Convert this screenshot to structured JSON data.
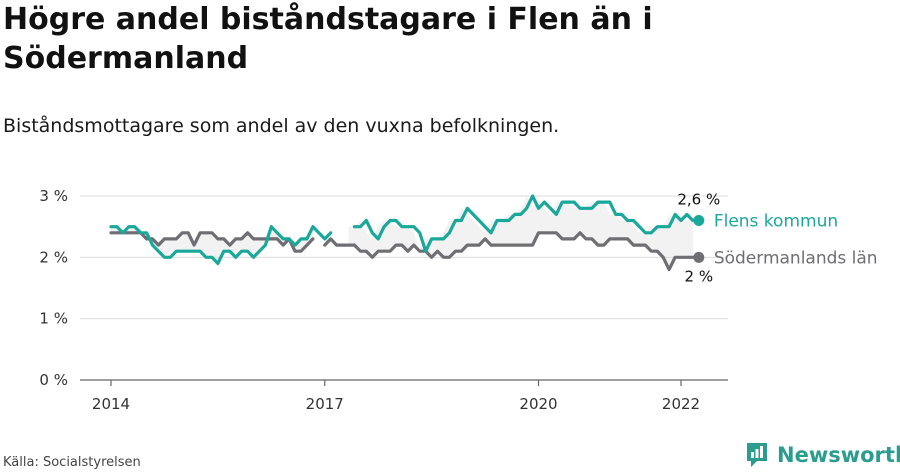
{
  "title": "Högre andel biståndstagare i Flen än i Södermanland",
  "subtitle": "Biståndsmottagare som andel av den vuxna befolkningen.",
  "source": "Källa: Socialstyrelsen",
  "brand": {
    "name": "Newsworthy",
    "icon": "newsworthy-logo-icon",
    "color": "#2a9d8f"
  },
  "chart_data": {
    "type": "line",
    "title": "Högre andel biståndstagare i Flen än i Södermanland",
    "subtitle": "Biståndsmottagare som andel av den vuxna befolkningen.",
    "xlabel": "",
    "ylabel": "",
    "xlim": [
      2014.0,
      2022.4
    ],
    "ylim": [
      0,
      3
    ],
    "y_ticks": [
      0,
      1,
      2,
      3
    ],
    "y_tick_labels": [
      "0 %",
      "1 %",
      "2 %",
      "3 %"
    ],
    "x_ticks": [
      2014,
      2017,
      2020,
      2022
    ],
    "x_tick_labels": [
      "2014",
      "2017",
      "2020",
      "2022"
    ],
    "grid": "horizontal",
    "legend": "inline at line ends",
    "series": [
      {
        "name": "Flens kommun",
        "color": "#1aa89a",
        "end_label": "2,6 %",
        "x": [
          2014.0,
          2014.083,
          2014.167,
          2014.25,
          2014.333,
          2014.417,
          2014.5,
          2014.583,
          2014.667,
          2014.75,
          2014.833,
          2014.917,
          2015.0,
          2015.083,
          2015.167,
          2015.25,
          2015.333,
          2015.417,
          2015.5,
          2015.583,
          2015.667,
          2015.75,
          2015.833,
          2015.917,
          2016.0,
          2016.083,
          2016.167,
          2016.25,
          2016.333,
          2016.417,
          2016.5,
          2016.583,
          2016.667,
          2016.75,
          2016.833,
          2016.917,
          2017.0,
          2017.083,
          2017.167,
          null,
          2017.417,
          2017.5,
          2017.583,
          2017.667,
          2017.75,
          2017.833,
          2017.917,
          2018.0,
          2018.083,
          2018.167,
          2018.25,
          2018.333,
          2018.417,
          2018.5,
          2018.583,
          2018.667,
          2018.75,
          2018.833,
          2018.917,
          2019.0,
          2019.083,
          2019.167,
          2019.25,
          2019.333,
          2019.417,
          2019.5,
          2019.583,
          2019.667,
          2019.75,
          2019.833,
          2019.917,
          2020.0,
          2020.083,
          2020.167,
          2020.25,
          2020.333,
          2020.417,
          2020.5,
          2020.583,
          2020.667,
          2020.75,
          2020.833,
          2020.917,
          2021.0,
          2021.083,
          2021.167,
          2021.25,
          2021.333,
          2021.417,
          2021.5,
          2021.583,
          2021.667,
          2021.75,
          2021.833,
          2021.917,
          2022.0,
          2022.083,
          2022.167,
          2022.25
        ],
        "y": [
          2.5,
          2.5,
          2.4,
          2.5,
          2.5,
          2.4,
          2.4,
          2.2,
          2.1,
          2.0,
          2.0,
          2.1,
          2.1,
          2.1,
          2.1,
          2.1,
          2.0,
          2.0,
          1.9,
          2.1,
          2.1,
          2.0,
          2.1,
          2.1,
          2.0,
          2.1,
          2.2,
          2.5,
          2.4,
          2.3,
          2.3,
          2.2,
          2.3,
          2.3,
          2.5,
          2.4,
          2.3,
          2.4,
          null,
          null,
          2.5,
          2.5,
          2.6,
          2.4,
          2.3,
          2.5,
          2.6,
          2.6,
          2.5,
          2.5,
          2.5,
          2.4,
          2.1,
          2.3,
          2.3,
          2.3,
          2.4,
          2.6,
          2.6,
          2.8,
          2.7,
          2.6,
          2.5,
          2.4,
          2.6,
          2.6,
          2.6,
          2.7,
          2.7,
          2.8,
          3.0,
          2.8,
          2.9,
          2.8,
          2.7,
          2.9,
          2.9,
          2.9,
          2.8,
          2.8,
          2.8,
          2.9,
          2.9,
          2.9,
          2.7,
          2.7,
          2.6,
          2.6,
          2.5,
          2.4,
          2.4,
          2.5,
          2.5,
          2.5,
          2.7,
          2.6,
          2.7,
          2.6,
          2.6
        ]
      },
      {
        "name": "Södermanlands län",
        "color": "#6e6e73",
        "end_label": "2 %",
        "x": [
          2014.0,
          2014.083,
          2014.167,
          2014.25,
          2014.333,
          2014.417,
          2014.5,
          2014.583,
          2014.667,
          2014.75,
          2014.833,
          2014.917,
          2015.0,
          2015.083,
          2015.167,
          2015.25,
          2015.333,
          2015.417,
          2015.5,
          2015.583,
          2015.667,
          2015.75,
          2015.833,
          2015.917,
          2016.0,
          2016.083,
          2016.167,
          2016.25,
          2016.333,
          2016.417,
          2016.5,
          2016.583,
          2016.667,
          2016.75,
          2016.833,
          2016.917,
          2017.0,
          2017.083,
          2017.167,
          2017.25,
          2017.333,
          2017.417,
          2017.5,
          2017.583,
          2017.667,
          2017.75,
          2017.833,
          2017.917,
          2018.0,
          2018.083,
          2018.167,
          2018.25,
          2018.333,
          2018.417,
          2018.5,
          2018.583,
          2018.667,
          2018.75,
          2018.833,
          2018.917,
          2019.0,
          2019.083,
          2019.167,
          2019.25,
          2019.333,
          2019.417,
          2019.5,
          2019.583,
          2019.667,
          2019.75,
          2019.833,
          2019.917,
          2020.0,
          2020.083,
          2020.167,
          2020.25,
          2020.333,
          2020.417,
          2020.5,
          2020.583,
          2020.667,
          2020.75,
          2020.833,
          2020.917,
          2021.0,
          2021.083,
          2021.167,
          2021.25,
          2021.333,
          2021.417,
          2021.5,
          2021.583,
          2021.667,
          2021.75,
          2021.833,
          2021.917,
          2022.0,
          2022.083,
          2022.167,
          2022.25
        ],
        "y": [
          2.4,
          2.4,
          2.4,
          2.4,
          2.4,
          2.4,
          2.3,
          2.3,
          2.2,
          2.3,
          2.3,
          2.3,
          2.4,
          2.4,
          2.2,
          2.4,
          2.4,
          2.4,
          2.3,
          2.3,
          2.2,
          2.3,
          2.3,
          2.4,
          2.3,
          2.3,
          2.3,
          2.3,
          2.3,
          2.2,
          2.3,
          2.1,
          2.1,
          2.2,
          2.3,
          null,
          2.2,
          2.3,
          2.2,
          2.2,
          2.2,
          2.2,
          2.1,
          2.1,
          2.0,
          2.1,
          2.1,
          2.1,
          2.2,
          2.2,
          2.1,
          2.2,
          2.1,
          2.1,
          2.0,
          2.1,
          2.0,
          2.0,
          2.1,
          2.1,
          2.2,
          2.2,
          2.2,
          2.3,
          2.2,
          2.2,
          2.2,
          2.2,
          2.2,
          2.2,
          2.2,
          2.2,
          2.4,
          2.4,
          2.4,
          2.4,
          2.3,
          2.3,
          2.3,
          2.4,
          2.3,
          2.3,
          2.2,
          2.2,
          2.3,
          2.3,
          2.3,
          2.3,
          2.2,
          2.2,
          2.2,
          2.1,
          2.1,
          2.0,
          1.8,
          2.0,
          2.0,
          2.0,
          2.0,
          2.0
        ]
      }
    ]
  }
}
